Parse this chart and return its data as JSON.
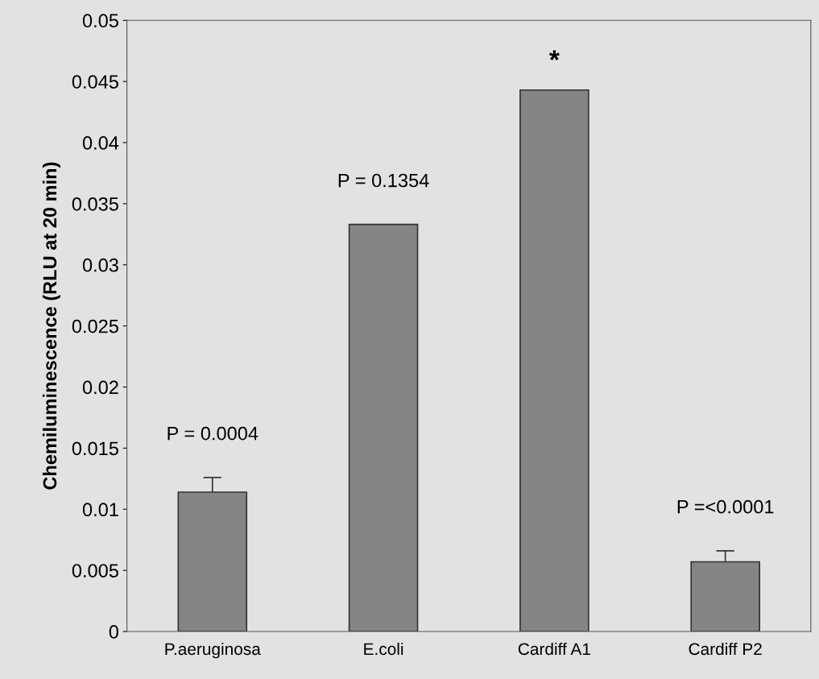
{
  "chart_data": {
    "type": "bar",
    "ylabel": "Chemiluminescence (RLU at 20 min)",
    "categories": [
      "P.aeruginosa",
      "E.coli",
      "Cardiff A1",
      "Cardiff P2"
    ],
    "values": [
      0.0114,
      0.0333,
      0.0443,
      0.0057
    ],
    "errors": [
      0.0012,
      null,
      null,
      0.0009
    ],
    "color": "#858585",
    "ylim": [
      0,
      0.05
    ],
    "yticks": [
      0,
      0.005,
      0.01,
      0.015,
      0.02,
      0.025,
      0.03,
      0.035,
      0.04,
      0.045,
      0.05
    ],
    "grid": false,
    "annotations": [
      {
        "text": "P = 0.0004",
        "x": "P.aeruginosa",
        "y": 0.0114
      },
      {
        "text": "P = 0.1354",
        "x": "E.coli",
        "y": 0.0333
      },
      {
        "text": "*",
        "x": "Cardiff A1",
        "y": 0.0443
      },
      {
        "text": "P =<0.0001",
        "x": "Cardiff P2",
        "y": 0.0057
      }
    ]
  }
}
